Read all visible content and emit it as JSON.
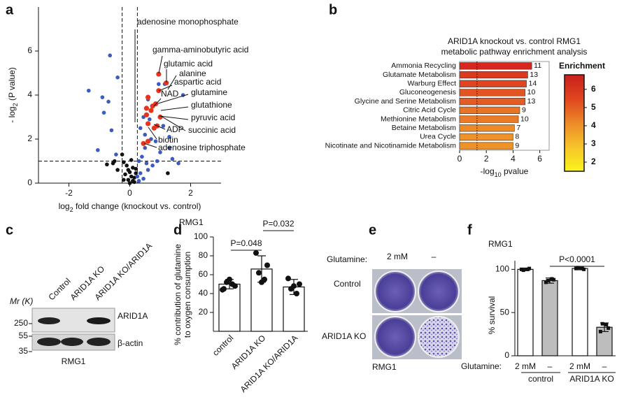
{
  "panel_letters": [
    "a",
    "b",
    "c",
    "d",
    "e",
    "f"
  ],
  "blot": {
    "mr_label": "Mr (K)",
    "lanes": [
      "Control",
      "ARID1A KO",
      "ARID1A KO/ARID1A"
    ],
    "markers": [
      "250",
      "55",
      "35"
    ],
    "proteins": [
      "ARID1A",
      "β-actin"
    ],
    "cell_line": "RMG1"
  },
  "plates": {
    "factor_label": "Glutamine:",
    "conditions": [
      "2 mM",
      "–"
    ],
    "rows": [
      "Control",
      "ARID1A KO"
    ],
    "cell_line": "RMG1"
  },
  "chart_data": [
    {
      "type": "scatter",
      "xlabel": {
        "text": "log",
        "sub": "2",
        "rest": " fold change (knockout vs. control)"
      },
      "ylabel": {
        "text": "- log",
        "sub": "2",
        "rest": " (P value)"
      },
      "xlim": [
        -3,
        3
      ],
      "ylim": [
        0,
        8
      ],
      "xticks": [
        -2,
        0,
        2
      ],
      "yticks": [
        0,
        2,
        4,
        6
      ],
      "cutoffs": {
        "x": [
          -0.25,
          0.25
        ],
        "y": 1
      },
      "series": [
        {
          "color": "#3b5bbf",
          "x": [
            -0.65,
            -0.4,
            -1.35,
            -0.9,
            -0.7,
            -0.85,
            -0.6,
            -1.05,
            -0.45,
            1.75,
            0.95,
            1.15,
            0.6,
            0.45,
            0.35,
            0.5,
            0.7,
            1.3,
            0.5,
            0.85,
            1.0,
            1.3,
            0.4,
            0.55,
            0.75,
            0.6,
            0.35,
            0.25,
            0.45,
            0.3,
            1.6,
            1.4,
            0.9,
            0.65,
            1.1,
            0.3
          ],
          "values": [
            5.8,
            4.8,
            4.2,
            3.9,
            3.7,
            3.2,
            2.4,
            1.5,
            1.3,
            4.0,
            4.5,
            4.5,
            3.8,
            3.0,
            2.5,
            2.2,
            2.0,
            2.1,
            1.6,
            1.9,
            1.4,
            1.6,
            1.2,
            0.9,
            0.8,
            0.6,
            0.45,
            0.3,
            0.2,
            0.1,
            0.9,
            1.1,
            1.0,
            2.9,
            2.6,
            1.0
          ]
        },
        {
          "color": "#e8341c",
          "x": [
            0.95,
            1.2,
            0.95,
            0.6,
            0.55,
            0.7,
            0.75,
            0.85,
            0.55,
            1.0,
            0.6,
            0.8,
            0.9,
            0.45,
            0.6
          ],
          "values": [
            4.95,
            4.55,
            4.2,
            3.9,
            3.4,
            3.3,
            3.5,
            3.6,
            3.1,
            3.0,
            2.7,
            2.5,
            2.6,
            1.8,
            1.9
          ]
        },
        {
          "color": "#111111",
          "x": [
            -0.75,
            -0.55,
            -0.4,
            -0.2,
            -0.25,
            -0.1,
            -0.05,
            0.0,
            0.1,
            0.05,
            -0.05,
            0.1,
            0.15,
            0.0,
            -0.15,
            0.2,
            0.15,
            -0.2,
            -0.5,
            0.2,
            1.25,
            0.05
          ],
          "values": [
            0.85,
            0.9,
            0.6,
            0.95,
            1.3,
            0.8,
            0.6,
            0.5,
            0.7,
            0.3,
            0.15,
            0.1,
            0.05,
            0.0,
            0.4,
            0.45,
            0.25,
            0.15,
            1.0,
            0.65,
            0.45,
            1.05
          ]
        }
      ],
      "annotations": [
        "adenosine monophosphate",
        "gamma-aminobutyric acid",
        "glutamic acid",
        "alanine",
        "aspartic acid",
        "NAD",
        "glutamine",
        "glutathione",
        "pyruvic acid",
        "succinic acid",
        "ADP",
        "biotin",
        "adenosine triphosphate"
      ]
    },
    {
      "type": "bar",
      "orientation": "horizontal",
      "title": [
        "ARID1A knockout vs. control RMG1",
        "metabolic pathway enrichment analysis"
      ],
      "categories": [
        "Ammonia Recycling",
        "Glutamate Metabolism",
        "Warburg Effect",
        "Gluconeogenesis",
        "Glycine and Serine Metabolism",
        "Citric Acid Cycle",
        "Methionine Metabolism",
        "Betaine Metabolism",
        "Urea Cycle",
        "Nicotinate and Nicotinamide Metabolism"
      ],
      "values": [
        5.4,
        5.1,
        5.0,
        4.9,
        4.9,
        4.5,
        4.4,
        4.1,
        4.0,
        4.0
      ],
      "counts": [
        11,
        13,
        14,
        10,
        13,
        9,
        10,
        7,
        8,
        9
      ],
      "colors": [
        "#d7261e",
        "#dc3a1f",
        "#df4520",
        "#e25522",
        "#e45c23",
        "#e87425",
        "#e97a26",
        "#ec8a28",
        "#ee9229",
        "#ee9229"
      ],
      "xlim": [
        0,
        6.7
      ],
      "xticks": [
        0,
        2,
        4,
        6
      ],
      "threshold": 1.3,
      "xlabel": {
        "text": "-log",
        "sub": "10",
        "rest": " pvalue"
      },
      "colorbar": {
        "label": "Enrichment",
        "lim": [
          1.5,
          6.8
        ],
        "ticks": [
          2,
          3,
          4,
          5,
          6
        ],
        "colors": [
          "#fbf51a",
          "#f6c42a",
          "#ec8a28",
          "#e0451f",
          "#c8201c"
        ]
      }
    },
    {
      "type": "bar",
      "title": "RMG1",
      "ylabel": [
        "% contribution of glutamine",
        "to oxygen consumption"
      ],
      "categories": [
        "control",
        "ARID1A KO",
        "ARID1A KO/ARID1A"
      ],
      "values": [
        50,
        66,
        47
      ],
      "errors": [
        5,
        14,
        8
      ],
      "points": [
        [
          45,
          48,
          52,
          50,
          55,
          44
        ],
        [
          83,
          70,
          62,
          55,
          52
        ],
        [
          56,
          50,
          45,
          40,
          48
        ]
      ],
      "colors": [
        "#ffffff",
        "#ffffff",
        "#ffffff"
      ],
      "ylim": [
        0,
        100
      ],
      "yticks": [
        20,
        40,
        60,
        80,
        100
      ],
      "p_labels": [
        "P=0.048",
        "P=0.032"
      ]
    },
    {
      "type": "bar",
      "title": "RMG1",
      "ylabel": "% survival",
      "factor_label": "Glutamine:",
      "categories": [
        "2 mM",
        "–",
        "2 mM",
        "–"
      ],
      "groups": [
        "control",
        "ARID1A KO"
      ],
      "values": [
        100,
        87,
        101,
        33
      ],
      "errors": [
        1.5,
        3,
        1.5,
        5
      ],
      "points": [
        [
          100,
          101,
          99,
          100
        ],
        [
          85,
          88,
          87,
          89
        ],
        [
          101,
          100,
          102,
          101
        ],
        [
          28,
          32,
          37,
          36
        ]
      ],
      "colors": [
        "#ffffff",
        "#bdbdbd",
        "#ffffff",
        "#bdbdbd"
      ],
      "ylim": [
        0,
        110
      ],
      "yticks": [
        0,
        50,
        100
      ],
      "p_labels": [
        "P<0.0001"
      ]
    }
  ]
}
